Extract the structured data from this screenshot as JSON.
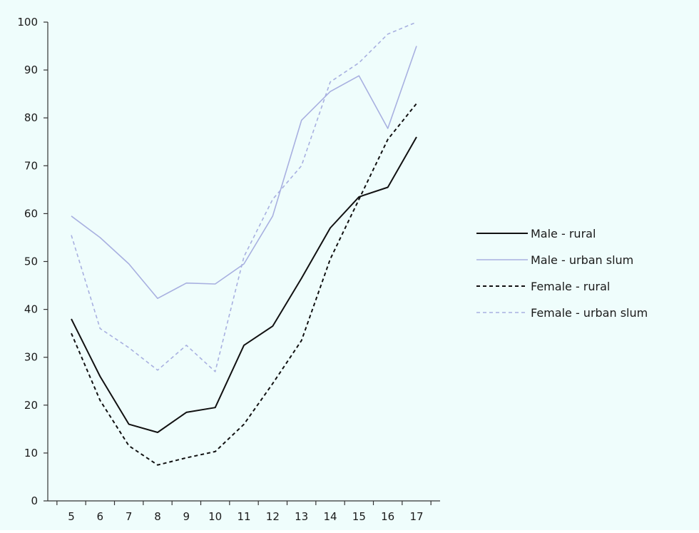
{
  "colors": {
    "plot_background": "#effdfc",
    "axis": "#333333"
  },
  "chart_data": {
    "type": "line",
    "title": "",
    "xlabel": "",
    "ylabel": "",
    "x": [
      5,
      6,
      7,
      8,
      9,
      10,
      11,
      12,
      13,
      14,
      15,
      16,
      17
    ],
    "xtick_labels": [
      "5",
      "6",
      "7",
      "8",
      "9",
      "10",
      "11",
      "12",
      "13",
      "14",
      "15",
      "16",
      "17"
    ],
    "ylim": [
      0,
      100
    ],
    "yticks": [
      0,
      10,
      20,
      30,
      40,
      50,
      60,
      70,
      80,
      90,
      100
    ],
    "ytick_labels": [
      "0",
      "10",
      "20",
      "30",
      "40",
      "50",
      "60",
      "70",
      "80",
      "90",
      "100"
    ],
    "grid": false,
    "legend_position": "right",
    "series": [
      {
        "name": "Male - rural",
        "color": "#111111",
        "dash": "solid",
        "values": [
          38,
          26,
          16,
          14.3,
          18.5,
          19.5,
          32.5,
          36.5,
          46.5,
          57,
          63.5,
          65.5,
          76
        ]
      },
      {
        "name": "Male - urban slum",
        "color": "#a8b0e0",
        "dash": "solid",
        "values": [
          59.5,
          55,
          49.5,
          42.3,
          45.5,
          45.3,
          49.5,
          59.5,
          79.5,
          85.5,
          88.8,
          77.8,
          95
        ]
      },
      {
        "name": "Female - rural",
        "color": "#111111",
        "dash": "dashed",
        "values": [
          35,
          21,
          11.5,
          7.5,
          9,
          10.3,
          16,
          24.5,
          33.5,
          50.5,
          63,
          75.5,
          83
        ]
      },
      {
        "name": "Female - urban slum",
        "color": "#a8b0e0",
        "dash": "dashed",
        "values": [
          55.5,
          36,
          32,
          27.3,
          32.5,
          27,
          51,
          63,
          70,
          87.5,
          91.5,
          97.5,
          100
        ]
      }
    ]
  }
}
